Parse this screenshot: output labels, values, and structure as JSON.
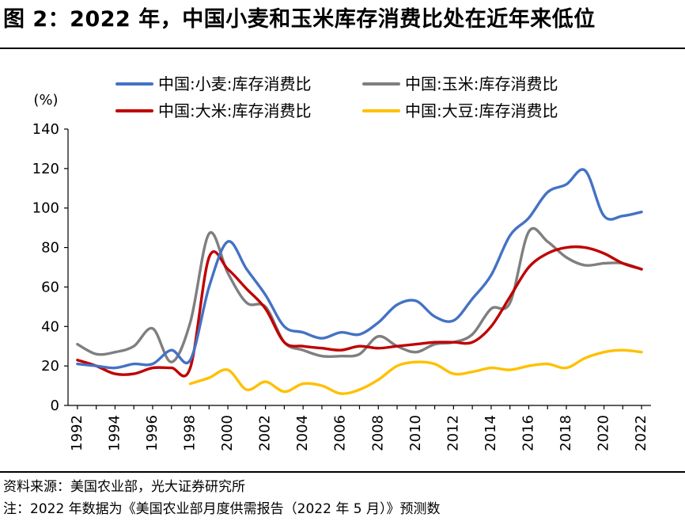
{
  "figure": {
    "title": "图 2：2022 年，中国小麦和玉米库存消费比处在近年来低位",
    "source": "资料来源：美国农业部，光大证券研究所",
    "note": "注：2022 年数据为《美国农业部月度供需报告（2022 年 5 月）》预测数"
  },
  "chart_data": {
    "type": "line",
    "title": "",
    "xlabel": "",
    "ylabel": "(%)",
    "ylim": [
      0,
      140
    ],
    "xlim": [
      1992,
      2022
    ],
    "y_ticks": [
      "0",
      "20",
      "40",
      "60",
      "80",
      "100",
      "120",
      "140"
    ],
    "x_ticks": [
      "1992",
      "1994",
      "1996",
      "1998",
      "2000",
      "2002",
      "2004",
      "2006",
      "2008",
      "2010",
      "2012",
      "2014",
      "2016",
      "2018",
      "2020",
      "2022"
    ],
    "grid": false,
    "legend_position": "top",
    "series": [
      {
        "name": "中国:小麦:库存消费比",
        "color": "#4472c4",
        "x": [
          1992,
          1993,
          1994,
          1995,
          1996,
          1997,
          1998,
          1999,
          2000,
          2001,
          2002,
          2003,
          2004,
          2005,
          2006,
          2007,
          2008,
          2009,
          2010,
          2011,
          2012,
          2013,
          2014,
          2015,
          2016,
          2017,
          2018,
          2019,
          2020,
          2021,
          2022
        ],
        "y": [
          21,
          20,
          19,
          21,
          21,
          28,
          23,
          60,
          83,
          69,
          56,
          40,
          37,
          34,
          37,
          36,
          42,
          51,
          53,
          45,
          43,
          54,
          66,
          86,
          95,
          108,
          112,
          119,
          96,
          96,
          98
        ]
      },
      {
        "name": "中国:玉米:库存消费比",
        "color": "#7f7f7f",
        "x": [
          1992,
          1993,
          1994,
          1995,
          1996,
          1997,
          1998,
          1999,
          2000,
          2001,
          2002,
          2003,
          2004,
          2005,
          2006,
          2007,
          2008,
          2009,
          2010,
          2011,
          2012,
          2013,
          2014,
          2015,
          2016,
          2017,
          2018,
          2019,
          2020,
          2021,
          2022
        ],
        "y": [
          31,
          26,
          27,
          30,
          39,
          22,
          42,
          87,
          67,
          52,
          50,
          32,
          28,
          25,
          25,
          26,
          35,
          30,
          27,
          31,
          32,
          36,
          49,
          52,
          88,
          83,
          75,
          71,
          72,
          72,
          69
        ]
      },
      {
        "name": "中国:大米:库存消费比",
        "color": "#c00000",
        "x": [
          1992,
          1993,
          1994,
          1995,
          1996,
          1997,
          1998,
          1999,
          2000,
          2001,
          2002,
          2003,
          2004,
          2005,
          2006,
          2007,
          2008,
          2009,
          2010,
          2011,
          2012,
          2013,
          2014,
          2015,
          2016,
          2017,
          2018,
          2019,
          2020,
          2021,
          2022
        ],
        "y": [
          23,
          20,
          16,
          16,
          19,
          19,
          19,
          75,
          69,
          59,
          49,
          32,
          30,
          29,
          28,
          30,
          29,
          30,
          31,
          32,
          32,
          32,
          40,
          55,
          70,
          77,
          80,
          80,
          77,
          72,
          69
        ]
      },
      {
        "name": "中国:大豆:库存消费比",
        "color": "#ffc000",
        "x": [
          1998,
          1999,
          2000,
          2001,
          2002,
          2003,
          2004,
          2005,
          2006,
          2007,
          2008,
          2009,
          2010,
          2011,
          2012,
          2013,
          2014,
          2015,
          2016,
          2017,
          2018,
          2019,
          2020,
          2021,
          2022
        ],
        "y": [
          11,
          14,
          18,
          8,
          12,
          7,
          11,
          10,
          6,
          8,
          13,
          20,
          22,
          21,
          16,
          17,
          19,
          18,
          20,
          21,
          19,
          24,
          27,
          28,
          27
        ]
      }
    ]
  }
}
